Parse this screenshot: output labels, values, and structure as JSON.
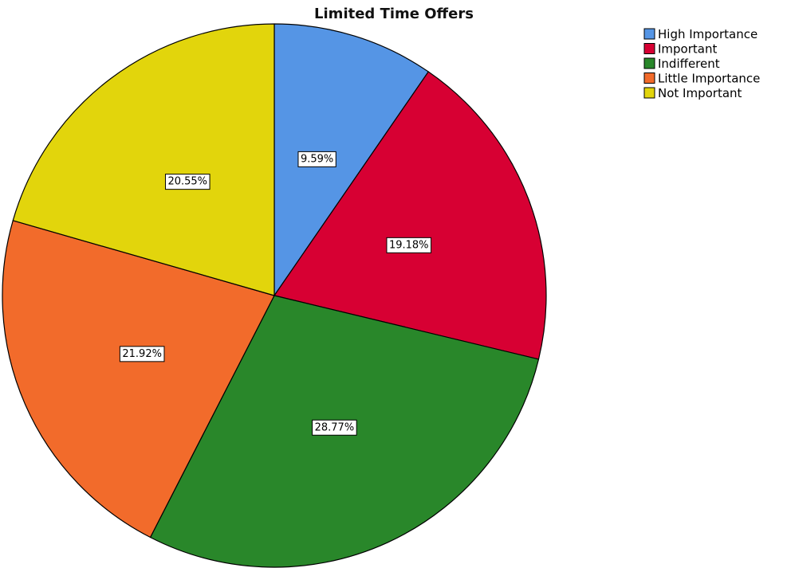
{
  "chart_data": {
    "type": "pie",
    "title": "Limited Time Offers",
    "legend_position": "top-right",
    "slices": [
      {
        "label": "High Importance",
        "value": 9.59,
        "display": "9.59%",
        "color": "#5595e5"
      },
      {
        "label": "Important",
        "value": 19.18,
        "display": "19.18%",
        "color": "#d70033"
      },
      {
        "label": "Indifferent",
        "value": 28.77,
        "display": "28.77%",
        "color": "#29872a"
      },
      {
        "label": "Little Importance",
        "value": 21.92,
        "display": "21.92%",
        "color": "#f26b2b"
      },
      {
        "label": "Not Important",
        "value": 20.55,
        "display": "20.55%",
        "color": "#e2d50c"
      }
    ]
  }
}
